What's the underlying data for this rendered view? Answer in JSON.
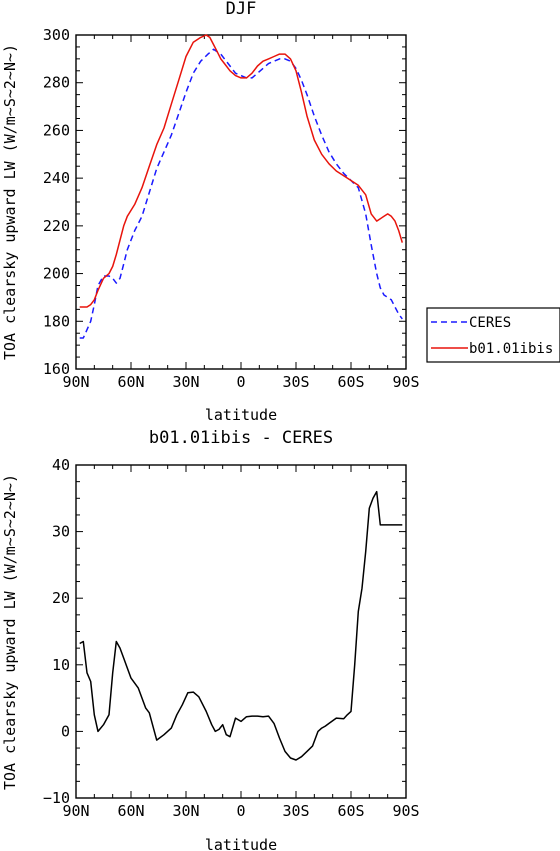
{
  "chart_data": [
    {
      "type": "line",
      "title": "DJF",
      "xlabel": "latitude",
      "ylabel": "TOA clearsky upward LW (W/m~S~2~N~)",
      "xlim": [
        -90,
        90
      ],
      "ylim": [
        160,
        300
      ],
      "x_ticks": [
        -90,
        -60,
        -30,
        0,
        30,
        60,
        90
      ],
      "x_tick_labels": [
        "90N",
        "60N",
        "30N",
        "0",
        "30S",
        "60S",
        "90S"
      ],
      "y_ticks": [
        160,
        180,
        200,
        220,
        240,
        260,
        280,
        300
      ],
      "y_tick_labels": [
        "160",
        "180",
        "200",
        "220",
        "240",
        "260",
        "280",
        "300"
      ],
      "grid": false,
      "legend_position": "right",
      "series": [
        {
          "name": "CERES",
          "color": "#1a1aff",
          "dash": "dashed",
          "x": [
            -88,
            -86,
            -82,
            -80,
            -78,
            -75,
            -72,
            -70,
            -68,
            -66,
            -64,
            -62,
            -58,
            -54,
            -50,
            -46,
            -42,
            -38,
            -34,
            -30,
            -26,
            -22,
            -18,
            -15,
            -13,
            -11,
            -9,
            -6,
            -3,
            0,
            3,
            6,
            9,
            12,
            15,
            18,
            21,
            24,
            27,
            30,
            33,
            36,
            40,
            44,
            48,
            52,
            56,
            60,
            64,
            68,
            71,
            74,
            76,
            78,
            80,
            82,
            84,
            86,
            88
          ],
          "y": [
            173,
            173,
            180,
            187,
            195,
            199,
            199,
            198,
            196,
            198,
            204,
            210,
            218,
            224,
            234,
            244,
            251,
            258,
            267,
            276,
            284,
            289,
            292,
            294,
            293,
            292,
            290,
            287,
            284,
            283,
            282,
            282,
            284,
            286,
            288,
            289,
            290,
            290,
            289,
            286,
            281,
            275,
            266,
            258,
            251,
            246,
            242,
            239,
            236,
            225,
            212,
            200,
            194,
            191,
            190,
            189,
            186,
            183,
            181
          ]
        },
        {
          "name": "b01.01ibis",
          "color": "#e8140c",
          "dash": "solid",
          "x": [
            -88,
            -86,
            -84,
            -82,
            -80,
            -78,
            -75,
            -72,
            -70,
            -68,
            -66,
            -64,
            -62,
            -58,
            -54,
            -50,
            -46,
            -42,
            -38,
            -34,
            -30,
            -26,
            -22,
            -19,
            -17,
            -15,
            -13,
            -11,
            -9,
            -6,
            -3,
            0,
            3,
            6,
            9,
            12,
            15,
            18,
            21,
            24,
            27,
            30,
            33,
            36,
            40,
            44,
            48,
            52,
            56,
            60,
            64,
            68,
            71,
            74,
            76,
            78,
            80,
            82,
            84,
            86,
            88
          ],
          "y": [
            186,
            186,
            186,
            187,
            189,
            193,
            198,
            200,
            203,
            208,
            214,
            220,
            224,
            229,
            236,
            245,
            254,
            261,
            271,
            281,
            291,
            297,
            299,
            300,
            299,
            296,
            293,
            290,
            288,
            285,
            283,
            282,
            282,
            284,
            287,
            289,
            290,
            291,
            292,
            292,
            290,
            285,
            276,
            266,
            256,
            250,
            246,
            243,
            241,
            239,
            237,
            233,
            225,
            222,
            223,
            224,
            225,
            224,
            222,
            218,
            213
          ]
        }
      ]
    },
    {
      "type": "line",
      "title": "b01.01ibis - CERES",
      "xlabel": "latitude",
      "ylabel": "TOA clearsky upward LW (W/m~S~2~N~)",
      "xlim": [
        -90,
        90
      ],
      "ylim": [
        -10,
        40
      ],
      "x_ticks": [
        -90,
        -60,
        -30,
        0,
        30,
        60,
        90
      ],
      "x_tick_labels": [
        "90N",
        "60N",
        "30N",
        "0",
        "30S",
        "60S",
        "90S"
      ],
      "y_ticks": [
        -10,
        0,
        10,
        20,
        30,
        40
      ],
      "y_tick_labels": [
        "−10",
        "0",
        "10",
        "20",
        "30",
        "40"
      ],
      "grid": false,
      "series": [
        {
          "color": "#000000",
          "dash": "solid",
          "x": [
            -88,
            -86,
            -84,
            -82,
            -80,
            -78,
            -75,
            -72,
            -70,
            -68,
            -66,
            -64,
            -60,
            -56,
            -52,
            -50,
            -46,
            -42,
            -38,
            -35,
            -32,
            -29,
            -26,
            -23,
            -19,
            -16,
            -14,
            -12,
            -10,
            -8,
            -6,
            -3,
            0,
            3,
            6,
            9,
            12,
            15,
            18,
            21,
            24,
            27,
            30,
            33,
            36,
            39,
            42,
            44,
            46,
            48,
            52,
            56,
            58,
            60,
            62,
            64,
            66,
            68,
            70,
            72,
            74,
            76,
            78,
            80,
            82,
            84,
            86,
            88
          ],
          "y": [
            13.2,
            13.5,
            8.8,
            7.5,
            2.5,
            0,
            1,
            2.5,
            8.8,
            13.5,
            12.5,
            11,
            8,
            6.5,
            3.5,
            2.8,
            -1.3,
            -0.5,
            0.5,
            2.5,
            4,
            5.8,
            5.9,
            5.2,
            3,
            1,
            0,
            0.3,
            1,
            -0.5,
            -0.8,
            2,
            1.5,
            2.2,
            2.3,
            2.3,
            2.2,
            2.3,
            1.2,
            -1,
            -3,
            -4,
            -4.3,
            -3.8,
            -3,
            -2.2,
            0,
            0.5,
            0.8,
            1.2,
            2,
            1.9,
            2.5,
            3,
            10,
            18,
            21.5,
            27,
            33.5,
            35,
            36,
            31,
            31,
            31,
            31,
            31,
            31,
            31
          ]
        }
      ]
    }
  ],
  "legend": {
    "items": [
      {
        "label": "CERES",
        "color": "#1a1aff",
        "dash": "dashed"
      },
      {
        "label": "b01.01ibis",
        "color": "#e8140c",
        "dash": "solid"
      }
    ]
  }
}
